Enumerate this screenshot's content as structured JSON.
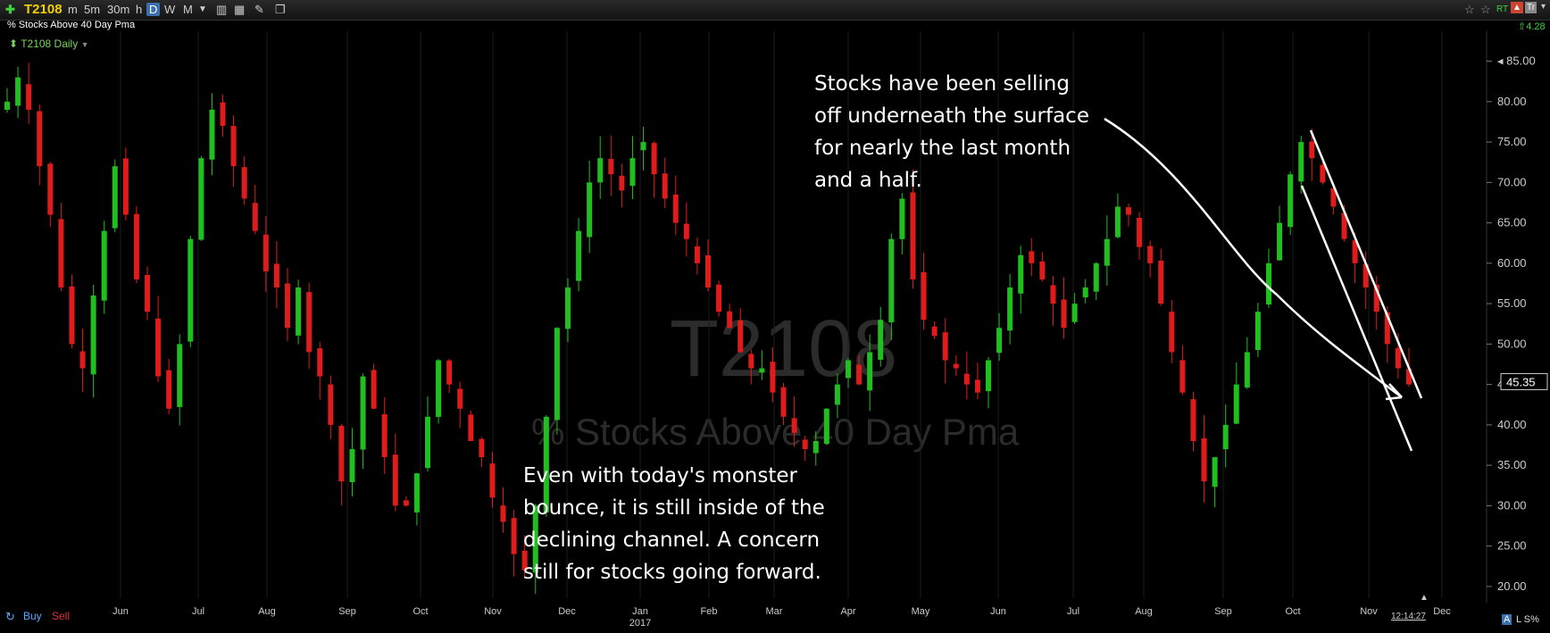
{
  "toolbar": {
    "plus_icon": "plus-icon",
    "symbol": "T2108",
    "intervals": [
      "m",
      "5m",
      "30m",
      "h",
      "D",
      "W",
      "M"
    ],
    "selected_interval": "D",
    "tools": [
      "bars-icon",
      "calculator-icon",
      "pencil-icon",
      "layers-icon"
    ],
    "subtitle": "% Stocks Above 40 Day Pma",
    "right_badges": [
      "RT",
      "Tr"
    ],
    "last_change": "4.28"
  },
  "study_label": "T2108 Daily",
  "watermark": {
    "symbol": "T2108",
    "name": "% Stocks Above 40 Day Pma"
  },
  "annotations": {
    "top": "Stocks have been selling\noff underneath the surface\nfor nearly the last month\nand a half.",
    "bottom": "Even with today's monster\nbounce, it is still inside of the\ndeclining channel. A concern\nstill for stocks going forward."
  },
  "bottom": {
    "buy": "Buy",
    "sell": "Sell",
    "time": "12:14:27",
    "corner": "L S%"
  },
  "colors": {
    "up": "#1fbf1f",
    "down": "#e01b1b",
    "price_box": "#000000",
    "axis_text": "#cccccc"
  },
  "chart_data": {
    "type": "candlestick",
    "title": "% Stocks Above 40 Day Pma",
    "y_axis": {
      "ticks": [
        20,
        25,
        30,
        35,
        40,
        45,
        50,
        55,
        60,
        65,
        70,
        75,
        80,
        85
      ],
      "ylim": [
        18,
        86.5
      ],
      "side": "right"
    },
    "x_axis": {
      "months": [
        "Jun",
        "Jul",
        "Aug",
        "Sep",
        "Oct",
        "Nov",
        "Dec",
        "Jan",
        "Feb",
        "Mar",
        "Apr",
        "May",
        "Jun",
        "Jul",
        "Aug",
        "Sep",
        "Oct",
        "Nov",
        "Dec"
      ],
      "year_label": "2017",
      "year_under": "Jan"
    },
    "last_price": "45.35",
    "series_close": [
      80,
      83,
      79,
      72,
      66,
      57,
      50,
      47,
      56,
      64,
      72,
      66,
      58,
      54,
      46,
      42,
      50,
      63,
      73,
      79,
      77,
      72,
      68,
      64,
      59,
      57,
      52,
      57,
      49,
      46,
      40,
      33,
      37,
      46,
      42,
      36,
      30,
      30,
      34,
      41,
      48,
      45,
      42,
      38,
      36,
      31,
      28,
      24,
      22,
      30,
      41,
      52,
      57,
      64,
      70,
      73,
      71,
      69,
      73,
      75,
      71,
      68,
      65,
      63,
      60,
      57,
      54,
      52,
      49,
      47,
      47,
      44,
      41,
      39,
      37,
      38,
      42,
      45,
      48,
      45,
      49,
      53,
      63,
      68,
      58,
      53,
      51,
      48,
      47,
      45,
      44,
      48,
      52,
      57,
      61,
      60,
      58,
      55,
      52,
      55,
      57,
      60,
      63,
      67,
      66,
      62,
      60,
      55,
      49,
      44,
      38,
      33,
      36,
      40,
      45,
      49,
      54,
      60,
      65,
      71,
      75,
      73,
      70,
      67,
      63,
      60,
      57,
      54,
      50,
      47,
      45
    ]
  }
}
